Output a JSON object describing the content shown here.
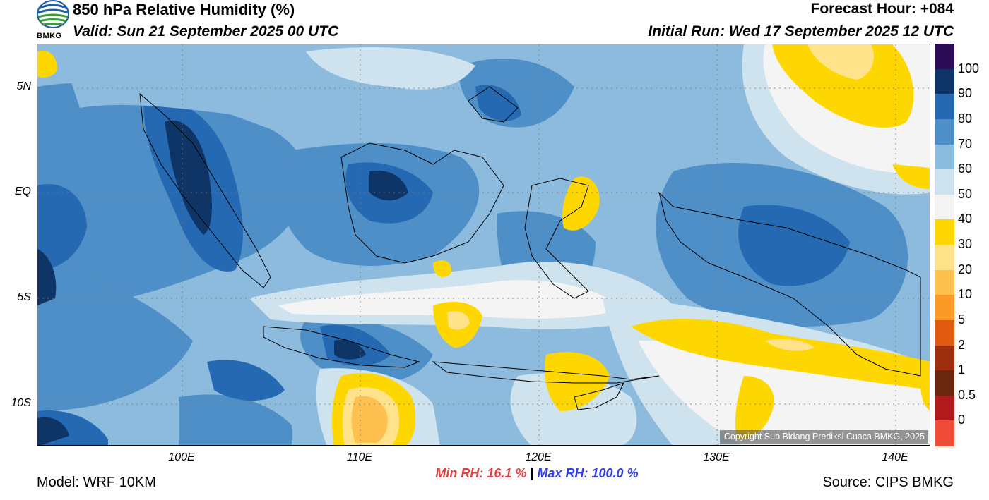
{
  "header": {
    "title": "850 hPa Relative Humidity (%)",
    "valid": "Valid: Sun 21 September 2025 00 UTC",
    "forecast_hour": "Forecast Hour: +084",
    "initial_run": "Initial Run: Wed 17 September 2025 12 UTC",
    "logo_text": "BMKG"
  },
  "map": {
    "lat_labels": [
      "5N",
      "EQ",
      "5S",
      "10S"
    ],
    "lon_labels": [
      "100E",
      "110E",
      "120E",
      "130E",
      "140E"
    ],
    "copyright": "Copyright Sub Bidang Prediksi Cuaca BMKG, 2025"
  },
  "colorbar": {
    "labels": [
      "100",
      "90",
      "80",
      "70",
      "60",
      "50",
      "40",
      "30",
      "20",
      "10",
      "5",
      "2",
      "1",
      "0.5",
      "0"
    ],
    "colors": [
      "#2c0b56",
      "#0f3567",
      "#2469b1",
      "#4f8fc7",
      "#8cbcdd",
      "#cfe3ef",
      "#f4f4f4",
      "#ffd700",
      "#ffe28a",
      "#fec04e",
      "#fb9a27",
      "#e05a10",
      "#9c2e0d",
      "#6a260f",
      "#b11a1a",
      "#f04c3a"
    ]
  },
  "stats": {
    "min_rh": "Min RH:  16.1 %",
    "separator": "|",
    "max_rh": "Max RH: 100.0 %"
  },
  "footer": {
    "model": "Model: WRF 10KM",
    "source": "Source: CIPS BMKG"
  }
}
